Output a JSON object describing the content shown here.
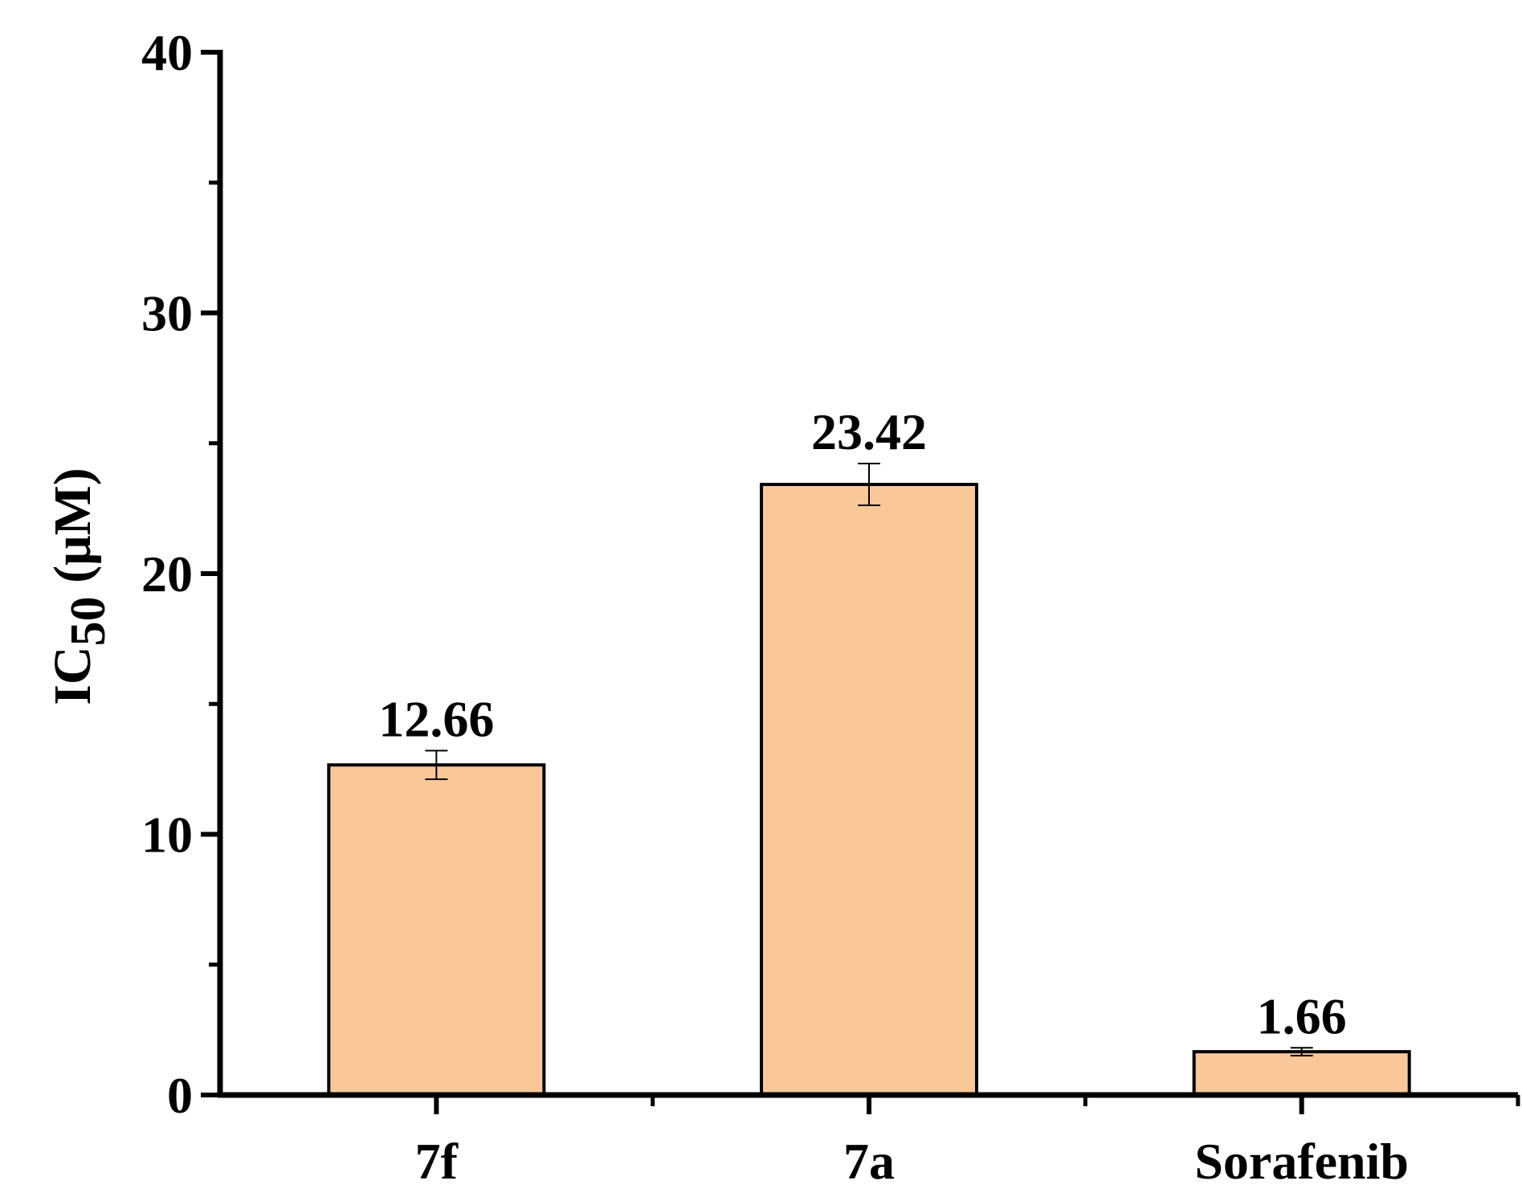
{
  "chart_data": {
    "type": "bar",
    "title": "",
    "xlabel": "",
    "ylabel": "IC50 (μM)",
    "ylabel_parts": {
      "main": "IC",
      "sub": "50",
      "unit": " (μM)"
    },
    "categories": [
      "7f",
      "7a",
      "Sorafenib"
    ],
    "values": [
      12.66,
      23.42,
      1.66
    ],
    "errors": [
      0.55,
      0.8,
      0.15
    ],
    "data_labels": [
      "12.66",
      "23.42",
      "1.66"
    ],
    "ylim": [
      0,
      40
    ],
    "yticks": [
      "0",
      "10",
      "20",
      "30",
      "40"
    ],
    "y_major_step": 10,
    "y_minor_step": 5,
    "grid": false,
    "legend": "none",
    "colors": {
      "bar_fill": "#FAC898",
      "bar_stroke": "#000000",
      "axis": "#000000"
    }
  }
}
